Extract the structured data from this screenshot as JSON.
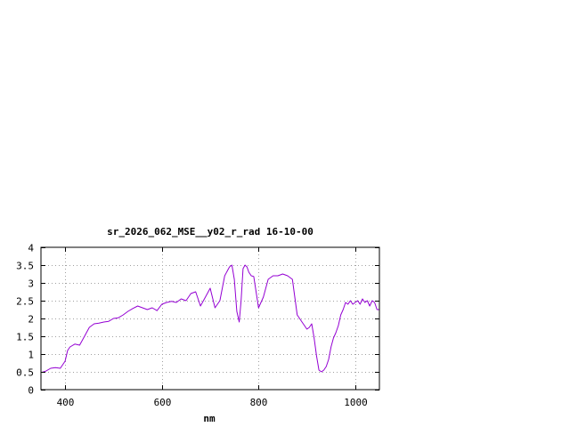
{
  "chart_data": {
    "type": "line",
    "title": "sr_2026_062_MSE__y02_r_rad 16-10-00",
    "xlabel": "nm",
    "ylabel": "",
    "xlim": [
      350,
      1050
    ],
    "ylim": [
      0,
      4
    ],
    "x_ticks": [
      400,
      600,
      800,
      1000
    ],
    "y_ticks": [
      0,
      0.5,
      1,
      1.5,
      2,
      2.5,
      3,
      3.5,
      4
    ],
    "x_tick_labels": [
      "400",
      "600",
      "800",
      "1000"
    ],
    "y_tick_labels": [
      "0",
      "0.5",
      "1",
      "1.5",
      "2",
      "2.5",
      "3",
      "3.5",
      "4"
    ],
    "grid": true,
    "series": [
      {
        "color": "#9400d3",
        "x": [
          350,
          360,
          370,
          380,
          390,
          395,
          400,
          405,
          410,
          420,
          430,
          440,
          450,
          460,
          470,
          480,
          490,
          500,
          510,
          520,
          530,
          540,
          550,
          560,
          570,
          580,
          590,
          600,
          610,
          620,
          630,
          640,
          650,
          660,
          670,
          680,
          690,
          700,
          710,
          720,
          730,
          740,
          745,
          750,
          755,
          760,
          764,
          768,
          772,
          776,
          780,
          785,
          790,
          800,
          810,
          820,
          830,
          840,
          850,
          860,
          870,
          880,
          890,
          900,
          905,
          910,
          915,
          920,
          925,
          930,
          935,
          940,
          945,
          950,
          955,
          960,
          965,
          970,
          975,
          980,
          985,
          990,
          995,
          1000,
          1005,
          1010,
          1015,
          1020,
          1025,
          1030,
          1035,
          1040,
          1045,
          1050
        ],
        "y": [
          0.48,
          0.52,
          0.6,
          0.62,
          0.6,
          0.7,
          0.8,
          1.1,
          1.2,
          1.28,
          1.25,
          1.5,
          1.75,
          1.85,
          1.87,
          1.9,
          1.92,
          2.0,
          2.02,
          2.1,
          2.2,
          2.28,
          2.35,
          2.3,
          2.25,
          2.3,
          2.22,
          2.4,
          2.45,
          2.48,
          2.45,
          2.55,
          2.5,
          2.7,
          2.75,
          2.35,
          2.6,
          2.85,
          2.3,
          2.5,
          3.2,
          3.45,
          3.5,
          3.1,
          2.2,
          1.9,
          2.5,
          3.4,
          3.5,
          3.45,
          3.3,
          3.2,
          3.18,
          2.3,
          2.6,
          3.1,
          3.2,
          3.2,
          3.25,
          3.2,
          3.1,
          2.1,
          1.9,
          1.7,
          1.75,
          1.85,
          1.45,
          0.95,
          0.55,
          0.5,
          0.55,
          0.65,
          0.85,
          1.2,
          1.45,
          1.6,
          1.8,
          2.1,
          2.25,
          2.45,
          2.4,
          2.5,
          2.4,
          2.45,
          2.5,
          2.4,
          2.55,
          2.45,
          2.5,
          2.35,
          2.5,
          2.45,
          2.25,
          2.25
        ]
      }
    ]
  }
}
